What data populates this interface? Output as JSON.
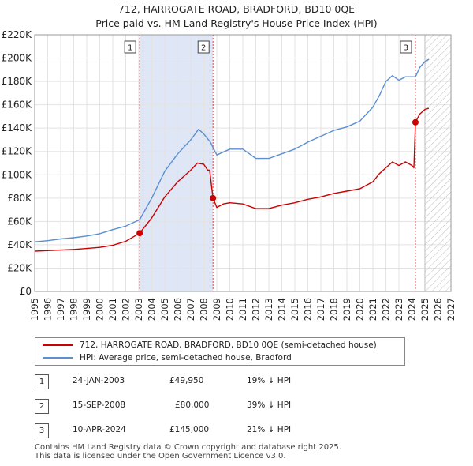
{
  "title": {
    "line1": "712, HARROGATE ROAD, BRADFORD, BD10 0QE",
    "line2": "Price paid vs. HM Land Registry's House Price Index (HPI)"
  },
  "colors": {
    "property": "#cc0000",
    "hpi": "#5b8fd0",
    "marker_box": "#444444"
  },
  "chart_data": {
    "type": "line",
    "x_range": [
      1995,
      2027
    ],
    "y_range": [
      0,
      220000
    ],
    "y_ticks": [
      {
        "value": 0,
        "label": "£0"
      },
      {
        "value": 20000,
        "label": "£20K"
      },
      {
        "value": 40000,
        "label": "£40K"
      },
      {
        "value": 60000,
        "label": "£60K"
      },
      {
        "value": 80000,
        "label": "£80K"
      },
      {
        "value": 100000,
        "label": "£100K"
      },
      {
        "value": 120000,
        "label": "£120K"
      },
      {
        "value": 140000,
        "label": "£140K"
      },
      {
        "value": 160000,
        "label": "£160K"
      },
      {
        "value": 180000,
        "label": "£180K"
      },
      {
        "value": 200000,
        "label": "£200K"
      },
      {
        "value": 220000,
        "label": "£220K"
      }
    ],
    "x_ticks": [
      "1995",
      "1996",
      "1997",
      "1998",
      "1999",
      "2000",
      "2001",
      "2002",
      "2003",
      "2004",
      "2005",
      "2006",
      "2007",
      "2008",
      "2009",
      "2010",
      "2011",
      "2012",
      "2013",
      "2014",
      "2015",
      "2016",
      "2017",
      "2018",
      "2019",
      "2020",
      "2021",
      "2022",
      "2023",
      "2024",
      "2025",
      "2026",
      "2027"
    ],
    "hatch_from": 2025.0,
    "sale_bands": [
      [
        2003.07,
        2008.71
      ]
    ],
    "series": [
      {
        "name": "712, HARROGATE ROAD, BRADFORD, BD10 0QE (semi-detached house)",
        "points": [
          [
            1995.0,
            34500
          ],
          [
            1996.0,
            35000
          ],
          [
            1997.0,
            35500
          ],
          [
            1998.0,
            36000
          ],
          [
            1999.0,
            36800
          ],
          [
            2000.0,
            37800
          ],
          [
            2001.0,
            39500
          ],
          [
            2002.0,
            43000
          ],
          [
            2003.07,
            49950
          ],
          [
            2004.0,
            63000
          ],
          [
            2005.0,
            81000
          ],
          [
            2006.0,
            94000
          ],
          [
            2007.0,
            104000
          ],
          [
            2007.5,
            110000
          ],
          [
            2008.0,
            109000
          ],
          [
            2008.3,
            104000
          ],
          [
            2008.45,
            104000
          ],
          [
            2008.71,
            80000
          ],
          [
            2009.0,
            72000
          ],
          [
            2009.5,
            75000
          ],
          [
            2010.0,
            76000
          ],
          [
            2011.0,
            75000
          ],
          [
            2012.0,
            71000
          ],
          [
            2013.0,
            71000
          ],
          [
            2014.0,
            74000
          ],
          [
            2015.0,
            76000
          ],
          [
            2016.0,
            79000
          ],
          [
            2017.0,
            81000
          ],
          [
            2018.0,
            84000
          ],
          [
            2019.0,
            86000
          ],
          [
            2020.0,
            88000
          ],
          [
            2021.0,
            94000
          ],
          [
            2021.5,
            101000
          ],
          [
            2022.0,
            106000
          ],
          [
            2022.5,
            111000
          ],
          [
            2023.0,
            108000
          ],
          [
            2023.5,
            111000
          ],
          [
            2024.0,
            108000
          ],
          [
            2024.15,
            106000
          ],
          [
            2024.27,
            145000
          ],
          [
            2024.6,
            152000
          ],
          [
            2025.0,
            156000
          ],
          [
            2025.3,
            157000
          ]
        ]
      },
      {
        "name": "HPI: Average price, semi-detached house, Bradford",
        "points": [
          [
            1995.0,
            42500
          ],
          [
            1996.0,
            43500
          ],
          [
            1997.0,
            45000
          ],
          [
            1998.0,
            46000
          ],
          [
            1999.0,
            47500
          ],
          [
            2000.0,
            49500
          ],
          [
            2001.0,
            53000
          ],
          [
            2002.0,
            56000
          ],
          [
            2003.07,
            61500
          ],
          [
            2004.0,
            80000
          ],
          [
            2005.0,
            103000
          ],
          [
            2006.0,
            118000
          ],
          [
            2007.0,
            130000
          ],
          [
            2007.6,
            139000
          ],
          [
            2008.0,
            135000
          ],
          [
            2008.5,
            128000
          ],
          [
            2009.0,
            117000
          ],
          [
            2010.0,
            122000
          ],
          [
            2011.0,
            122000
          ],
          [
            2012.0,
            114000
          ],
          [
            2013.0,
            114000
          ],
          [
            2014.0,
            118000
          ],
          [
            2015.0,
            122000
          ],
          [
            2016.0,
            128000
          ],
          [
            2017.0,
            133000
          ],
          [
            2018.0,
            138000
          ],
          [
            2019.0,
            141000
          ],
          [
            2020.0,
            146000
          ],
          [
            2021.0,
            158000
          ],
          [
            2021.5,
            168000
          ],
          [
            2022.0,
            180000
          ],
          [
            2022.5,
            185000
          ],
          [
            2023.0,
            181000
          ],
          [
            2023.5,
            184000
          ],
          [
            2024.27,
            184000
          ],
          [
            2024.6,
            192000
          ],
          [
            2025.0,
            197000
          ],
          [
            2025.3,
            199000
          ]
        ]
      }
    ],
    "sales": [
      {
        "n": "1",
        "x": 2003.07,
        "price": 49950
      },
      {
        "n": "2",
        "x": 2008.71,
        "price": 80000
      },
      {
        "n": "3",
        "x": 2024.27,
        "price": 145000
      }
    ]
  },
  "legend": {
    "property_label": "712, HARROGATE ROAD, BRADFORD, BD10 0QE (semi-detached house)",
    "hpi_label": "HPI: Average price, semi-detached house, Bradford"
  },
  "sales_table": [
    {
      "n": "1",
      "date": "24-JAN-2003",
      "price": "£49,950",
      "diff": "19% ↓ HPI"
    },
    {
      "n": "2",
      "date": "15-SEP-2008",
      "price": "£80,000",
      "diff": "39% ↓ HPI"
    },
    {
      "n": "3",
      "date": "10-APR-2024",
      "price": "£145,000",
      "diff": "21% ↓ HPI"
    }
  ],
  "footer": {
    "line1": "Contains HM Land Registry data © Crown copyright and database right 2025.",
    "line2": "This data is licensed under the Open Government Licence v3.0."
  }
}
